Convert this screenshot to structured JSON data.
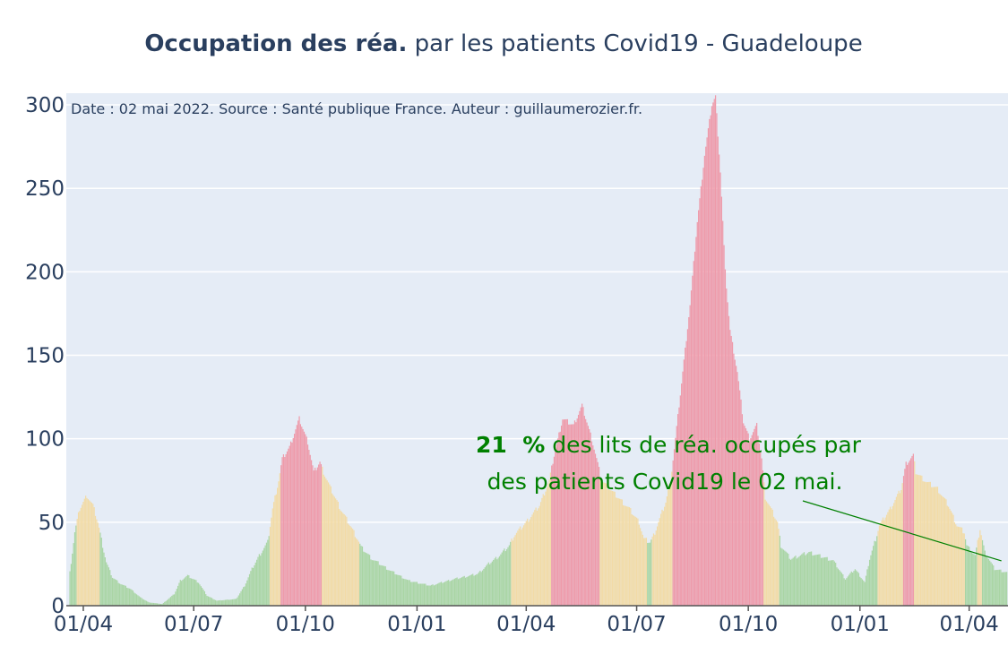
{
  "chart_data": {
    "type": "bar",
    "title_bold": "Occupation des réa.",
    "title_rest": " par les patients Covid19 - Guadeloupe",
    "source_note": "Date : 02 mai 2022. Source : Santé publique France. Auteur : guillaumerozier.fr.",
    "ylim": [
      0,
      307
    ],
    "yticks": [
      "0",
      "50",
      "100",
      "150",
      "200",
      "250",
      "300"
    ],
    "xlim_dates": [
      "2020-03-18",
      "2022-05-03"
    ],
    "xticks": [
      {
        "date": "2020-04-01",
        "label": "01/04"
      },
      {
        "date": "2020-07-01",
        "label": "01/07"
      },
      {
        "date": "2020-10-01",
        "label": "01/10"
      },
      {
        "date": "2021-01-01",
        "label": "01/01"
      },
      {
        "date": "2021-04-01",
        "label": "01/04"
      },
      {
        "date": "2021-07-01",
        "label": "01/07"
      },
      {
        "date": "2021-10-01",
        "label": "01/10"
      },
      {
        "date": "2022-01-01",
        "label": "01/01"
      },
      {
        "date": "2022-04-01",
        "label": "01/04"
      }
    ],
    "grid": true,
    "colors": {
      "plot_bg": "#e5ecf6",
      "grid": "#ffffff",
      "text": "#2a3f5f",
      "green": "#a9d5a4",
      "yellow": "#f2dba6",
      "red": "#ee9aaa",
      "annotation": "#008000"
    },
    "series_anchors": [
      [
        "2020-03-21",
        20,
        "green"
      ],
      [
        "2020-03-25",
        44,
        "green"
      ],
      [
        "2020-03-29",
        58,
        "yellow"
      ],
      [
        "2020-04-04",
        66,
        "yellow"
      ],
      [
        "2020-04-09",
        60,
        "yellow"
      ],
      [
        "2020-04-13",
        50,
        "yellow"
      ],
      [
        "2020-04-17",
        36,
        "green"
      ],
      [
        "2020-04-20",
        26,
        "green"
      ],
      [
        "2020-04-25",
        17,
        "green"
      ],
      [
        "2020-05-02",
        13,
        "green"
      ],
      [
        "2020-05-10",
        10,
        "green"
      ],
      [
        "2020-05-18",
        5,
        "green"
      ],
      [
        "2020-05-25",
        2,
        "green"
      ],
      [
        "2020-06-05",
        1,
        "green"
      ],
      [
        "2020-06-15",
        7,
        "green"
      ],
      [
        "2020-06-20",
        15,
        "green"
      ],
      [
        "2020-06-26",
        18,
        "green"
      ],
      [
        "2020-07-05",
        14,
        "green"
      ],
      [
        "2020-07-12",
        6,
        "green"
      ],
      [
        "2020-07-20",
        3,
        "green"
      ],
      [
        "2020-08-05",
        4,
        "green"
      ],
      [
        "2020-08-12",
        12,
        "green"
      ],
      [
        "2020-08-18",
        22,
        "green"
      ],
      [
        "2020-08-24",
        30,
        "green"
      ],
      [
        "2020-08-31",
        38,
        "green"
      ],
      [
        "2020-09-04",
        58,
        "yellow"
      ],
      [
        "2020-09-09",
        75,
        "yellow"
      ],
      [
        "2020-09-12",
        88,
        "red"
      ],
      [
        "2020-09-18",
        95,
        "red"
      ],
      [
        "2020-09-26",
        112,
        "red"
      ],
      [
        "2020-10-03",
        98,
        "red"
      ],
      [
        "2020-10-08",
        80,
        "red"
      ],
      [
        "2020-10-13",
        86,
        "red"
      ],
      [
        "2020-10-16",
        80,
        "yellow"
      ],
      [
        "2020-10-22",
        70,
        "yellow"
      ],
      [
        "2020-10-30",
        58,
        "yellow"
      ],
      [
        "2020-11-07",
        48,
        "yellow"
      ],
      [
        "2020-11-13",
        40,
        "yellow"
      ],
      [
        "2020-11-16",
        35,
        "green"
      ],
      [
        "2020-11-25",
        28,
        "green"
      ],
      [
        "2020-12-10",
        21,
        "green"
      ],
      [
        "2020-12-25",
        15,
        "green"
      ],
      [
        "2021-01-12",
        12,
        "green"
      ],
      [
        "2021-02-01",
        16,
        "green"
      ],
      [
        "2021-02-20",
        19,
        "green"
      ],
      [
        "2021-03-01",
        25,
        "green"
      ],
      [
        "2021-03-10",
        30,
        "green"
      ],
      [
        "2021-03-18",
        36,
        "green"
      ],
      [
        "2021-03-22",
        42,
        "yellow"
      ],
      [
        "2021-04-01",
        50,
        "yellow"
      ],
      [
        "2021-04-12",
        60,
        "yellow"
      ],
      [
        "2021-04-20",
        75,
        "yellow"
      ],
      [
        "2021-04-24",
        90,
        "red"
      ],
      [
        "2021-05-01",
        112,
        "red"
      ],
      [
        "2021-05-10",
        108,
        "red"
      ],
      [
        "2021-05-17",
        120,
        "red"
      ],
      [
        "2021-05-25",
        100,
        "red"
      ],
      [
        "2021-05-30",
        85,
        "red"
      ],
      [
        "2021-06-02",
        75,
        "yellow"
      ],
      [
        "2021-06-14",
        66,
        "yellow"
      ],
      [
        "2021-06-25",
        58,
        "yellow"
      ],
      [
        "2021-07-03",
        50,
        "yellow"
      ],
      [
        "2021-07-07",
        40,
        "yellow"
      ],
      [
        "2021-07-12",
        38,
        "green"
      ],
      [
        "2021-07-15",
        42,
        "yellow"
      ],
      [
        "2021-07-25",
        62,
        "yellow"
      ],
      [
        "2021-07-29",
        75,
        "yellow"
      ],
      [
        "2021-08-02",
        100,
        "red"
      ],
      [
        "2021-08-08",
        140,
        "red"
      ],
      [
        "2021-08-14",
        180,
        "red"
      ],
      [
        "2021-08-20",
        230,
        "red"
      ],
      [
        "2021-08-26",
        270,
        "red"
      ],
      [
        "2021-09-01",
        300,
        "red"
      ],
      [
        "2021-09-04",
        305,
        "red"
      ],
      [
        "2021-09-08",
        260,
        "red"
      ],
      [
        "2021-09-12",
        200,
        "red"
      ],
      [
        "2021-09-16",
        165,
        "red"
      ],
      [
        "2021-09-22",
        140,
        "red"
      ],
      [
        "2021-09-27",
        110,
        "red"
      ],
      [
        "2021-10-02",
        100,
        "red"
      ],
      [
        "2021-10-08",
        108,
        "red"
      ],
      [
        "2021-10-12",
        88,
        "red"
      ],
      [
        "2021-10-15",
        65,
        "yellow"
      ],
      [
        "2021-10-25",
        50,
        "yellow"
      ],
      [
        "2021-10-28",
        36,
        "green"
      ],
      [
        "2021-11-05",
        28,
        "green"
      ],
      [
        "2021-11-20",
        32,
        "green"
      ],
      [
        "2021-12-10",
        27,
        "green"
      ],
      [
        "2021-12-20",
        16,
        "green"
      ],
      [
        "2021-12-28",
        22,
        "green"
      ],
      [
        "2022-01-05",
        14,
        "green"
      ],
      [
        "2022-01-09",
        28,
        "green"
      ],
      [
        "2022-01-14",
        40,
        "green"
      ],
      [
        "2022-01-17",
        48,
        "yellow"
      ],
      [
        "2022-01-26",
        58,
        "yellow"
      ],
      [
        "2022-02-04",
        70,
        "yellow"
      ],
      [
        "2022-02-08",
        85,
        "red"
      ],
      [
        "2022-02-14",
        90,
        "red"
      ],
      [
        "2022-02-16",
        80,
        "yellow"
      ],
      [
        "2022-02-25",
        74,
        "yellow"
      ],
      [
        "2022-03-06",
        70,
        "yellow"
      ],
      [
        "2022-03-15",
        60,
        "yellow"
      ],
      [
        "2022-03-22",
        48,
        "yellow"
      ],
      [
        "2022-03-28",
        44,
        "yellow"
      ],
      [
        "2022-03-30",
        36,
        "green"
      ],
      [
        "2022-04-06",
        30,
        "green"
      ],
      [
        "2022-04-10",
        46,
        "yellow"
      ],
      [
        "2022-04-14",
        32,
        "green"
      ],
      [
        "2022-04-22",
        22,
        "green"
      ],
      [
        "2022-05-02",
        20,
        "green"
      ]
    ],
    "annotation": {
      "line1_bold": "21  %",
      "line1_rest": " des lits de réa. occupés par",
      "line2": "des patients Covid19 le 02 mai.",
      "arrow_to": {
        "date": "2022-05-02",
        "value": 29
      }
    }
  }
}
